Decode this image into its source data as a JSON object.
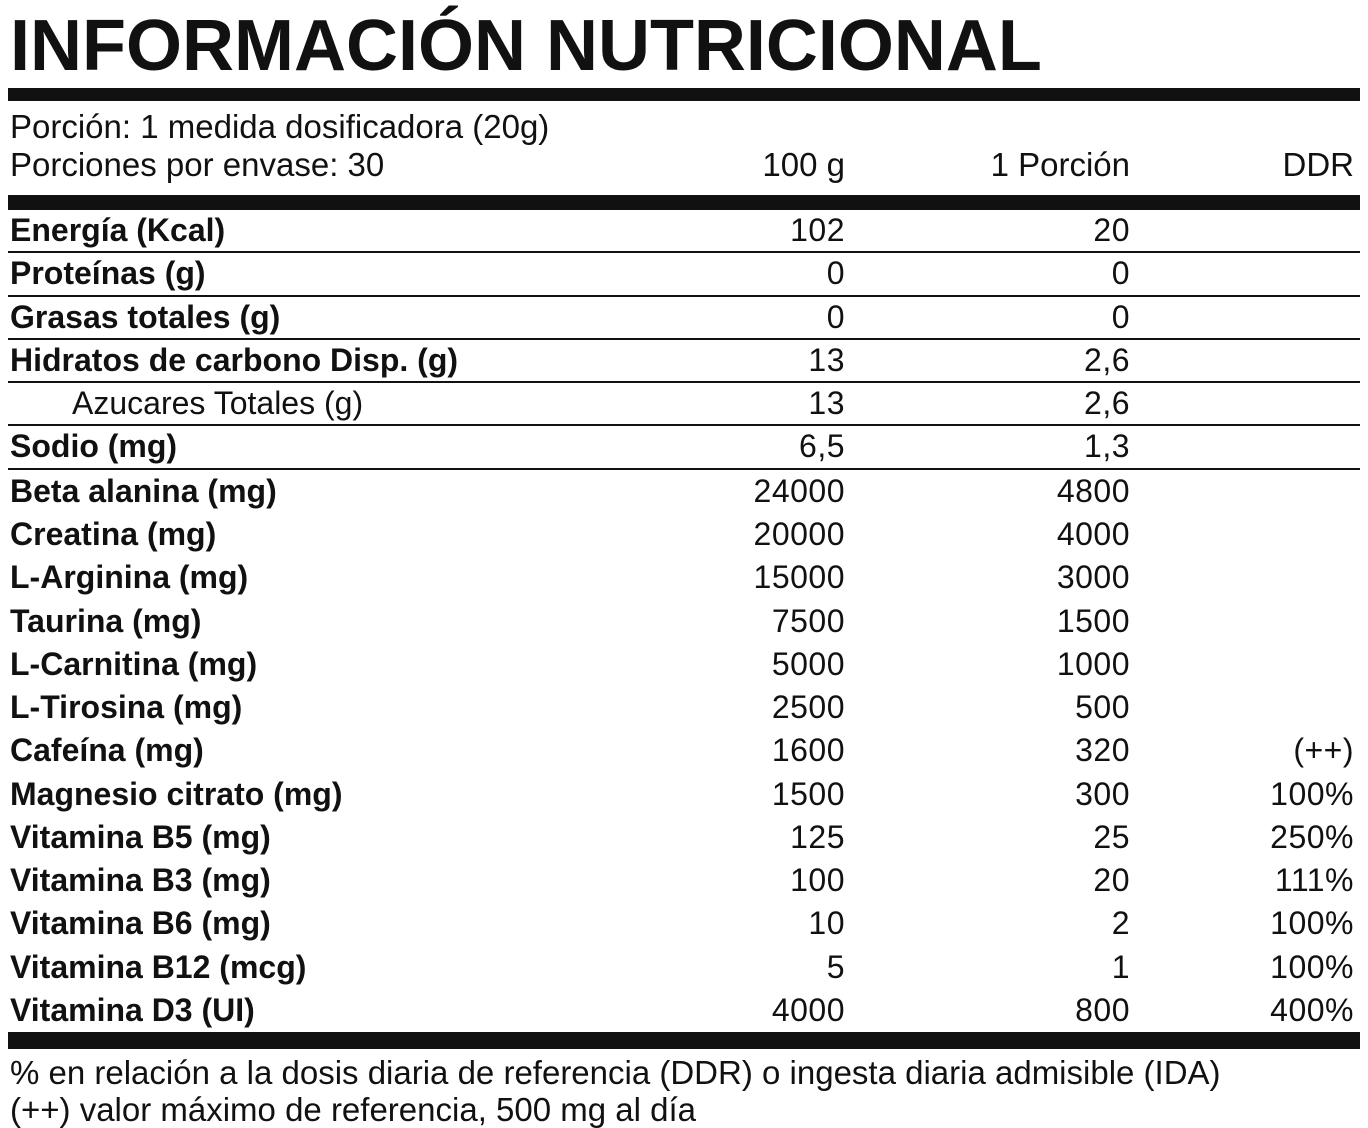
{
  "title": "INFORMACIÓN NUTRICIONAL",
  "serving": {
    "portion": "Porción: 1 medida dosificadora (20g)",
    "per_container": "Porciones por envase: 30"
  },
  "columns": {
    "per100": "100 g",
    "serving": "1 Porción",
    "ddr": "DDR"
  },
  "rows": [
    {
      "label": "Energía (Kcal)",
      "per100": "102",
      "serving": "20",
      "ddr": "",
      "bold": true,
      "indent": false,
      "sep": true
    },
    {
      "label": "Proteínas (g)",
      "per100": "0",
      "serving": "0",
      "ddr": "",
      "bold": true,
      "indent": false,
      "sep": true
    },
    {
      "label": "Grasas totales (g)",
      "per100": "0",
      "serving": "0",
      "ddr": "",
      "bold": true,
      "indent": false,
      "sep": true
    },
    {
      "label": "Hidratos de carbono Disp. (g)",
      "per100": "13",
      "serving": "2,6",
      "ddr": "",
      "bold": true,
      "indent": false,
      "sep": true
    },
    {
      "label": "Azucares Totales (g)",
      "per100": "13",
      "serving": "2,6",
      "ddr": "",
      "bold": false,
      "indent": true,
      "sep": true
    },
    {
      "label": "Sodio (mg)",
      "per100": "6,5",
      "serving": "1,3",
      "ddr": "",
      "bold": true,
      "indent": false,
      "sep": true
    },
    {
      "label": "Beta alanina (mg)",
      "per100": "24000",
      "serving": "4800",
      "ddr": "",
      "bold": true,
      "indent": false,
      "sep": false
    },
    {
      "label": "Creatina (mg)",
      "per100": "20000",
      "serving": "4000",
      "ddr": "",
      "bold": true,
      "indent": false,
      "sep": false
    },
    {
      "label": "L-Arginina (mg)",
      "per100": "15000",
      "serving": "3000",
      "ddr": "",
      "bold": true,
      "indent": false,
      "sep": false
    },
    {
      "label": "Taurina (mg)",
      "per100": "7500",
      "serving": "1500",
      "ddr": "",
      "bold": true,
      "indent": false,
      "sep": false
    },
    {
      "label": "L-Carnitina (mg)",
      "per100": "5000",
      "serving": "1000",
      "ddr": "",
      "bold": true,
      "indent": false,
      "sep": false
    },
    {
      "label": "L-Tirosina (mg)",
      "per100": "2500",
      "serving": "500",
      "ddr": "",
      "bold": true,
      "indent": false,
      "sep": false
    },
    {
      "label": "Cafeína (mg)",
      "per100": "1600",
      "serving": "320",
      "ddr": "(++)",
      "bold": true,
      "indent": false,
      "sep": false
    },
    {
      "label": "Magnesio citrato (mg)",
      "per100": "1500",
      "serving": "300",
      "ddr": "100%",
      "bold": true,
      "indent": false,
      "sep": false
    },
    {
      "label": "Vitamina B5 (mg)",
      "per100": "125",
      "serving": "25",
      "ddr": "250%",
      "bold": true,
      "indent": false,
      "sep": false
    },
    {
      "label": "Vitamina B3 (mg)",
      "per100": "100",
      "serving": "20",
      "ddr": "111%",
      "bold": true,
      "indent": false,
      "sep": false
    },
    {
      "label": "Vitamina B6 (mg)",
      "per100": "10",
      "serving": "2",
      "ddr": "100%",
      "bold": true,
      "indent": false,
      "sep": false
    },
    {
      "label": "Vitamina B12 (mcg)",
      "per100": "5",
      "serving": "1",
      "ddr": "100%",
      "bold": true,
      "indent": false,
      "sep": false
    },
    {
      "label": "Vitamina D3 (UI)",
      "per100": "4000",
      "serving": "800",
      "ddr": "400%",
      "bold": true,
      "indent": false,
      "sep": false
    }
  ],
  "footnotes": [
    "% en relación a la dosis diaria de referencia (DDR) o ingesta diaria admisible (IDA)",
    "(++) valor máximo de referencia, 500 mg al día"
  ],
  "colors": {
    "ink": "#111111",
    "background": "#ffffff"
  }
}
